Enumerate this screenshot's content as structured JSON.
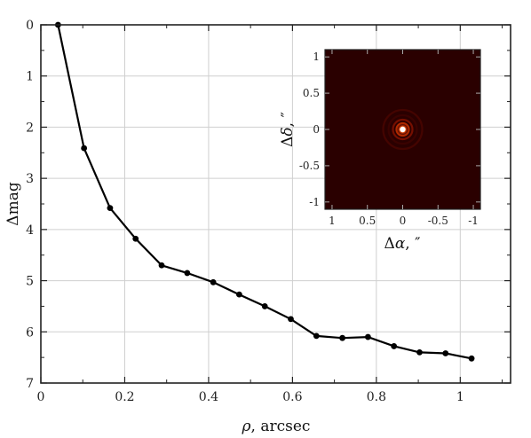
{
  "chart_data": [
    {
      "type": "line",
      "xlabel": "ρ, arcsec",
      "ylabel": "Δmag",
      "xlim": [
        0,
        1.12
      ],
      "ylim": [
        7,
        0
      ],
      "y_inverted": true,
      "grid": true,
      "x_ticks": [
        "0",
        "0.2",
        "0.4",
        "0.6",
        "0.8",
        "1"
      ],
      "x_tick_values": [
        0,
        0.2,
        0.4,
        0.6,
        0.8,
        1.0
      ],
      "y_ticks": [
        "0",
        "1",
        "2",
        "3",
        "4",
        "5",
        "6",
        "7"
      ],
      "y_tick_values": [
        0,
        1,
        2,
        3,
        4,
        5,
        6,
        7
      ],
      "series": [
        {
          "color": "#000000",
          "marker": "circle",
          "x": [
            0.041,
            0.103,
            0.165,
            0.226,
            0.288,
            0.349,
            0.411,
            0.473,
            0.534,
            0.596,
            0.657,
            0.719,
            0.78,
            0.842,
            0.903,
            0.965,
            1.027
          ],
          "y": [
            0.0,
            2.41,
            3.58,
            4.18,
            4.7,
            4.85,
            5.03,
            5.27,
            5.5,
            5.75,
            6.08,
            6.12,
            6.1,
            6.28,
            6.4,
            6.42,
            6.52
          ]
        }
      ]
    },
    {
      "type": "heatmap",
      "xlabel": "Δα, ″",
      "ylabel": "Δδ, ″",
      "xlim": [
        1.1,
        -1.1
      ],
      "ylim": [
        -1.1,
        1.1
      ],
      "x_ticks": [
        "1",
        "0.5",
        "0",
        "-0.5",
        "-1"
      ],
      "x_tick_values": [
        1,
        0.5,
        0,
        -0.5,
        -1
      ],
      "y_ticks": [
        "1",
        "0.5",
        "0",
        "-0.5",
        "-1"
      ],
      "y_tick_values": [
        1,
        0.5,
        0,
        -0.5,
        -1
      ],
      "colormap": [
        "#000000",
        "#3a0000",
        "#a01a00",
        "#ff7a20",
        "#ffffff"
      ],
      "description_source": "speckle image of single point source with diffraction rings"
    }
  ]
}
